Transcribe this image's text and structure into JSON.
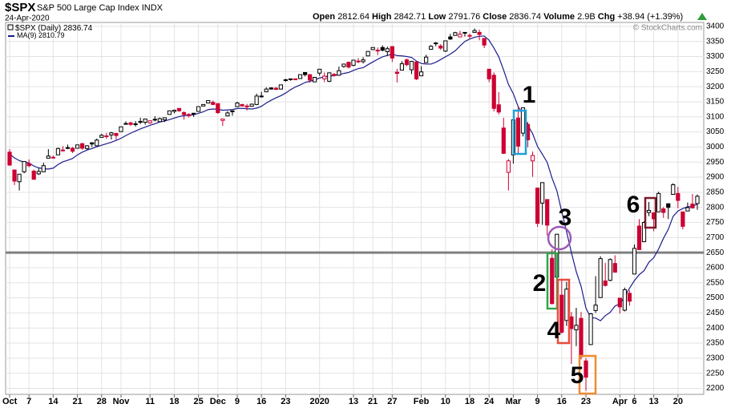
{
  "header": {
    "symbol": "$SPX",
    "name": "S&P 500 Large Cap Index",
    "exchange": "INDX",
    "date": "24-Apr-2020",
    "open_label": "Open",
    "high_label": "High",
    "low_label": "Low",
    "close_label": "Close",
    "volume_label": "Volume",
    "volume": "2.9B",
    "chg_label": "Chg",
    "chg": "+38.94 (+1.39%)",
    "watermark": "© StockCharts.com"
  },
  "chart_data": {
    "type": "candlestick",
    "price_name": "$SPX (Daily)",
    "up_color": "#000000",
    "down_color": "#cc0033",
    "categories": [
      "Oct",
      null,
      null,
      null,
      "7",
      null,
      null,
      null,
      null,
      "14",
      null,
      null,
      null,
      null,
      "21",
      null,
      null,
      null,
      null,
      "28",
      null,
      null,
      null,
      "Nov",
      null,
      null,
      null,
      null,
      null,
      "11",
      null,
      null,
      null,
      null,
      "18",
      null,
      null,
      null,
      null,
      "25",
      null,
      null,
      null,
      "Dec",
      null,
      null,
      null,
      "9",
      null,
      null,
      null,
      null,
      "16",
      null,
      null,
      null,
      null,
      "23",
      null,
      null,
      null,
      null,
      null,
      null,
      "2020",
      null,
      null,
      null,
      null,
      null,
      null,
      "13",
      null,
      null,
      null,
      "21",
      null,
      null,
      null,
      "27",
      null,
      null,
      null,
      null,
      null,
      "Feb",
      null,
      null,
      null,
      null,
      "10",
      null,
      null,
      null,
      null,
      "18",
      null,
      null,
      null,
      "24",
      null,
      null,
      null,
      null,
      "Mar",
      null,
      null,
      null,
      null,
      "9",
      null,
      null,
      null,
      null,
      "16",
      null,
      null,
      null,
      null,
      "23",
      null,
      null,
      null,
      null,
      null,
      null,
      "Apr",
      null,
      null,
      "6",
      null,
      null,
      null,
      "13",
      null,
      null,
      null,
      null,
      "20",
      null,
      null,
      null,
      null
    ],
    "open": [
      2983,
      2924,
      2885,
      2918,
      2945,
      2920,
      2911,
      2918,
      2963,
      2966,
      2974,
      2990,
      2996,
      2996,
      2996,
      3011,
      2995,
      3014,
      3004,
      3032,
      3037,
      3040,
      3045,
      3051,
      3078,
      3080,
      3075,
      3082,
      3082,
      3080,
      3090,
      3084,
      3090,
      3108,
      3118,
      3128,
      3114,
      3108,
      3112,
      3118,
      3136,
      3146,
      3148,
      3144,
      3088,
      3103,
      3120,
      3134,
      3141,
      3136,
      3135,
      3141,
      3167,
      3183,
      3196,
      3195,
      3192,
      3223,
      3226,
      3226,
      3227,
      3247,
      3240,
      3216,
      3245,
      3226,
      3218,
      3241,
      3238,
      3267,
      3281,
      3271,
      3285,
      3283,
      3302,
      3323,
      3321,
      3330,
      3316,
      3333,
      3248,
      3255,
      3289,
      3256,
      3282,
      3236,
      3280,
      3324,
      3344,
      3335,
      3318,
      3365,
      3370,
      3365,
      3378,
      3369,
      3380,
      3380,
      3360,
      3258,
      3238,
      3140,
      3063,
      2916,
      2974,
      3096,
      3046,
      3075,
      2954,
      2864,
      2814,
      2826,
      2631,
      2569,
      2509,
      2425,
      2437,
      2394,
      2432,
      2291,
      2345,
      2458,
      2501,
      2556,
      2558,
      2614,
      2499,
      2459,
      2515,
      2579,
      2738,
      2686,
      2783,
      2782,
      2785,
      2795,
      2812,
      2843,
      2846,
      2785,
      2788,
      2811,
      2812.64
    ],
    "high": [
      2993,
      2925,
      2911,
      2953,
      2959,
      2925,
      2929,
      2948,
      2993,
      2972,
      2998,
      3003,
      3008,
      3000,
      3008,
      3014,
      3006,
      3016,
      3028,
      3044,
      3047,
      3050,
      3047,
      3067,
      3085,
      3084,
      3086,
      3097,
      3094,
      3088,
      3102,
      3098,
      3098,
      3120,
      3124,
      3128,
      3118,
      3112,
      3113,
      3134,
      3142,
      3154,
      3154,
      3144,
      3094,
      3119,
      3120,
      3150,
      3143,
      3143,
      3144,
      3177,
      3183,
      3198,
      3198,
      3199,
      3207,
      3226,
      3227,
      3227,
      3240,
      3248,
      3240,
      3232,
      3258,
      3247,
      3247,
      3245,
      3267,
      3276,
      3283,
      3288,
      3295,
      3298,
      3317,
      3330,
      3330,
      3337,
      3333,
      3334,
      3259,
      3285,
      3293,
      3286,
      3283,
      3268,
      3306,
      3338,
      3348,
      3341,
      3352,
      3375,
      3382,
      3385,
      3381,
      3376,
      3393,
      3389,
      3360,
      3259,
      3247,
      3182,
      3097,
      2960,
      3091,
      3136,
      3130,
      3083,
      2985,
      2864,
      2882,
      2826,
      2661,
      2711,
      2563,
      2553,
      2453,
      2467,
      2453,
      2300,
      2450,
      2572,
      2638,
      2616,
      2631,
      2641,
      2499,
      2534,
      2525,
      2677,
      2761,
      2754,
      2818,
      2782,
      2852,
      2801,
      2806,
      2880,
      2868,
      2785,
      2816,
      2844,
      2842.71
    ],
    "low": [
      2938,
      2874,
      2856,
      2913,
      2933,
      2893,
      2907,
      2917,
      2963,
      2962,
      2974,
      2985,
      2993,
      2980,
      2995,
      2991,
      2991,
      3000,
      3003,
      3032,
      3027,
      3025,
      3024,
      3051,
      3078,
      3070,
      3068,
      3076,
      3074,
      3077,
      3085,
      3083,
      3083,
      3108,
      3112,
      3117,
      3091,
      3098,
      3100,
      3118,
      3135,
      3146,
      3139,
      3110,
      3070,
      3102,
      3104,
      3134,
      3135,
      3121,
      3135,
      3139,
      3164,
      3183,
      3191,
      3189,
      3192,
      3216,
      3220,
      3222,
      3227,
      3234,
      3213,
      3216,
      3236,
      3215,
      3215,
      3233,
      3236,
      3263,
      3260,
      3268,
      3278,
      3277,
      3302,
      3323,
      3305,
      3317,
      3302,
      3282,
      3214,
      3255,
      3268,
      3242,
      3222,
      3236,
      3280,
      3324,
      3334,
      3322,
      3315,
      3355,
      3370,
      3365,
      3366,
      3357,
      3379,
      3354,
      3328,
      3215,
      3118,
      3108,
      2977,
      2856,
      2945,
      2976,
      3035,
      2999,
      2901,
      2735,
      2742,
      2707,
      2478,
      2493,
      2381,
      2407,
      2281,
      2340,
      2296,
      2192,
      2345,
      2450,
      2500,
      2538,
      2555,
      2585,
      2448,
      2455,
      2474,
      2579,
      2659,
      2686,
      2771,
      2721,
      2785,
      2765,
      2761,
      2843,
      2797,
      2727,
      2788,
      2796,
      2791.76
    ],
    "close": [
      2940,
      2887,
      2910,
      2952,
      2938,
      2893,
      2919,
      2938,
      2970,
      2966,
      2995,
      2990,
      2998,
      2986,
      3007,
      2996,
      3004,
      3010,
      3023,
      3039,
      3036,
      3047,
      3038,
      3067,
      3078,
      3075,
      3077,
      3085,
      3093,
      3087,
      3092,
      3094,
      3097,
      3120,
      3122,
      3120,
      3108,
      3104,
      3110,
      3134,
      3141,
      3154,
      3141,
      3114,
      3093,
      3113,
      3117,
      3146,
      3136,
      3133,
      3142,
      3169,
      3169,
      3192,
      3192,
      3191,
      3206,
      3221,
      3224,
      3223,
      3240,
      3240,
      3222,
      3231,
      3258,
      3235,
      3246,
      3237,
      3253,
      3275,
      3265,
      3288,
      3283,
      3289,
      3317,
      3330,
      3321,
      3321,
      3326,
      3295,
      3244,
      3276,
      3273,
      3284,
      3226,
      3249,
      3298,
      3334,
      3345,
      3328,
      3352,
      3358,
      3379,
      3374,
      3380,
      3370,
      3386,
      3373,
      3338,
      3226,
      3128,
      3116,
      2979,
      2954,
      3090,
      3003,
      3130,
      3024,
      2972,
      2747,
      2882,
      2741,
      2481,
      2711,
      2386,
      2529,
      2398,
      2409,
      2305,
      2237,
      2447,
      2476,
      2630,
      2541,
      2627,
      2585,
      2470,
      2527,
      2489,
      2664,
      2660,
      2750,
      2790,
      2762,
      2846,
      2783,
      2800,
      2875,
      2823,
      2737,
      2799,
      2798,
      2836.74
    ],
    "series": [
      {
        "name": "MA(9)",
        "color": "#1c1c8c",
        "values": [
          2977,
          2964,
          2955,
          2950,
          2947,
          2937,
          2931,
          2928,
          2927,
          2930,
          2942,
          2951,
          2956,
          2962,
          2974,
          2983,
          2990,
          2995,
          3001,
          3006,
          3011,
          3016,
          3022,
          3029,
          3038,
          3046,
          3053,
          3060,
          3066,
          3072,
          3077,
          3083,
          3086,
          3091,
          3096,
          3101,
          3104,
          3105,
          3107,
          3112,
          3117,
          3124,
          3126,
          3125,
          3122,
          3123,
          3124,
          3128,
          3128,
          3127,
          3126,
          3129,
          3135,
          3146,
          3155,
          3163,
          3170,
          3179,
          3190,
          3199,
          3206,
          3214,
          3218,
          3222,
          3229,
          3233,
          3235,
          3237,
          3240,
          3244,
          3247,
          3254,
          3260,
          3263,
          3273,
          3282,
          3291,
          3299,
          3304,
          3308,
          3303,
          3302,
          3300,
          3297,
          3285,
          3277,
          3275,
          3275,
          3281,
          3290,
          3299,
          3308,
          3319,
          3335,
          3350,
          3358,
          3364,
          3367,
          3368,
          3354,
          3328,
          3299,
          3255,
          3208,
          3177,
          3134,
          3107,
          3072,
          3044,
          3002,
          2976,
          2949,
          2897,
          2855,
          2786,
          2719,
          2650,
          2587,
          2538,
          2466,
          2434,
          2433,
          2424,
          2441,
          2452,
          2473,
          2480,
          2504,
          2532,
          2557,
          2577,
          2590,
          2618,
          2633,
          2662,
          2697,
          2727,
          2770,
          2788,
          2796,
          2802,
          2803,
          2810.79
        ]
      }
    ],
    "ylim": [
      2180,
      3413
    ],
    "yticks": [
      2200,
      2250,
      2300,
      2350,
      2400,
      2450,
      2500,
      2550,
      2600,
      2650,
      2700,
      2750,
      2800,
      2850,
      2900,
      2950,
      3000,
      3050,
      3100,
      3150,
      3200,
      3250,
      3300,
      3350,
      3400
    ],
    "grid": true,
    "hline": 2650,
    "hline_color": "#808080",
    "annotations": [
      "1",
      "2",
      "3",
      "4",
      "5",
      "6"
    ]
  }
}
